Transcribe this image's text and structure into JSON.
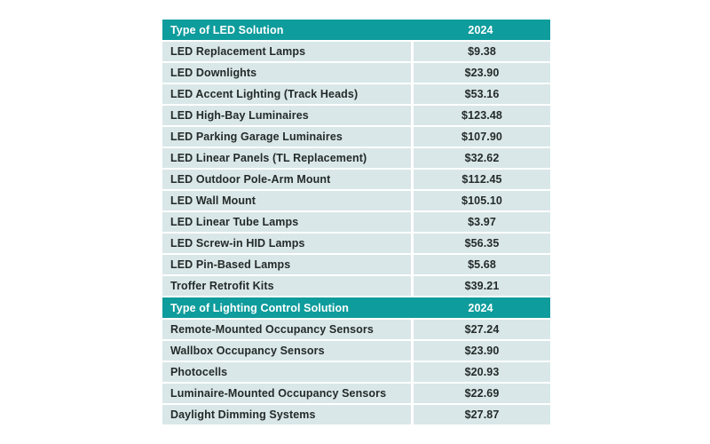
{
  "colors": {
    "page_background": "#ffffff",
    "header_background": "#0e9c9c",
    "header_text": "#ffffff",
    "row_background": "#d9e7e8",
    "row_text": "#242a2a"
  },
  "table": {
    "sections": [
      {
        "title": "Type of LED Solution",
        "year": "2024",
        "rows": [
          {
            "name": "LED Replacement Lamps",
            "value": "$9.38"
          },
          {
            "name": "LED Downlights",
            "value": "$23.90"
          },
          {
            "name": "LED Accent Lighting (Track Heads)",
            "value": "$53.16"
          },
          {
            "name": "LED High-Bay Luminaires",
            "value": "$123.48"
          },
          {
            "name": "LED Parking Garage Luminaires",
            "value": "$107.90"
          },
          {
            "name": "LED Linear Panels (TL Replacement)",
            "value": "$32.62"
          },
          {
            "name": "LED Outdoor Pole-Arm Mount",
            "value": "$112.45"
          },
          {
            "name": "LED Wall Mount",
            "value": "$105.10"
          },
          {
            "name": "LED Linear Tube Lamps",
            "value": "$3.97"
          },
          {
            "name": "LED Screw-in HID Lamps",
            "value": "$56.35"
          },
          {
            "name": "LED Pin-Based Lamps",
            "value": "$5.68"
          },
          {
            "name": "Troffer Retrofit Kits",
            "value": "$39.21"
          }
        ]
      },
      {
        "title": "Type of Lighting Control Solution",
        "year": "2024",
        "rows": [
          {
            "name": "Remote-Mounted Occupancy Sensors",
            "value": "$27.24"
          },
          {
            "name": "Wallbox Occupancy Sensors",
            "value": "$23.90"
          },
          {
            "name": "Photocells",
            "value": "$20.93"
          },
          {
            "name": "Luminaire-Mounted Occupancy Sensors",
            "value": "$22.69"
          },
          {
            "name": "Daylight Dimming Systems",
            "value": "$27.87"
          }
        ]
      }
    ]
  },
  "chart_data": [
    {
      "type": "table",
      "title": "Type of LED Solution",
      "columns": [
        "Type of LED Solution",
        "2024"
      ],
      "rows": [
        [
          "LED Replacement Lamps",
          9.38
        ],
        [
          "LED Downlights",
          23.9
        ],
        [
          "LED Accent Lighting (Track Heads)",
          53.16
        ],
        [
          "LED High-Bay Luminaires",
          123.48
        ],
        [
          "LED Parking Garage Luminaires",
          107.9
        ],
        [
          "LED Linear Panels (TL Replacement)",
          32.62
        ],
        [
          "LED Outdoor Pole-Arm Mount",
          112.45
        ],
        [
          "LED Wall Mount",
          105.1
        ],
        [
          "LED Linear Tube Lamps",
          3.97
        ],
        [
          "LED Screw-in HID Lamps",
          56.35
        ],
        [
          "LED Pin-Based Lamps",
          5.68
        ],
        [
          "Troffer Retrofit Kits",
          39.21
        ]
      ],
      "value_unit": "USD"
    },
    {
      "type": "table",
      "title": "Type of Lighting Control Solution",
      "columns": [
        "Type of Lighting Control Solution",
        "2024"
      ],
      "rows": [
        [
          "Remote-Mounted Occupancy Sensors",
          27.24
        ],
        [
          "Wallbox Occupancy Sensors",
          23.9
        ],
        [
          "Photocells",
          20.93
        ],
        [
          "Luminaire-Mounted Occupancy Sensors",
          22.69
        ],
        [
          "Daylight Dimming Systems",
          27.87
        ]
      ],
      "value_unit": "USD"
    }
  ]
}
